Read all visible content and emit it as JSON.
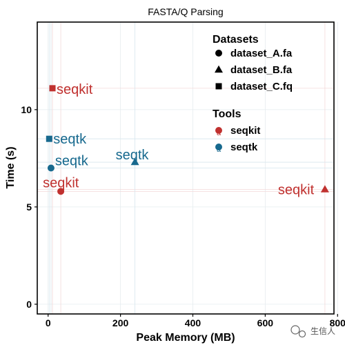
{
  "chart_data": {
    "type": "scatter",
    "title": "FASTA/Q Parsing",
    "xlabel": "Peak Memory (MB)",
    "ylabel": "Time (s)",
    "xlim": [
      -30,
      790
    ],
    "ylim": [
      -0.5,
      14.5
    ],
    "x_ticks": [
      0,
      200,
      400,
      600,
      800
    ],
    "y_ticks": [
      0,
      5,
      10
    ],
    "grid": true,
    "legend_placement": "top-right",
    "legend": {
      "datasets_title": "Datasets",
      "datasets": [
        {
          "name": "dataset_A.fa",
          "shape": "circle"
        },
        {
          "name": "dataset_B.fa",
          "shape": "triangle"
        },
        {
          "name": "dataset_C.fq",
          "shape": "square"
        }
      ],
      "tools_title": "Tools",
      "tools": [
        {
          "name": "seqkit",
          "color": "#c0312f"
        },
        {
          "name": "seqtk",
          "color": "#17698e"
        }
      ],
      "tool_key_glyph": "a"
    },
    "series": [
      {
        "name": "seqkit",
        "color": "#c0312f",
        "points": [
          {
            "dataset": "dataset_A.fa",
            "x": 35,
            "y": 5.8,
            "label": "seqkit"
          },
          {
            "dataset": "dataset_B.fa",
            "x": 765,
            "y": 5.9,
            "label": "seqkit"
          },
          {
            "dataset": "dataset_C.fq",
            "x": 12,
            "y": 11.1,
            "label": "seqkit"
          }
        ]
      },
      {
        "name": "seqtk",
        "color": "#17698e",
        "points": [
          {
            "dataset": "dataset_A.fa",
            "x": 8,
            "y": 7.0,
            "label": "seqtk"
          },
          {
            "dataset": "dataset_B.fa",
            "x": 240,
            "y": 7.3,
            "label": "seqtk"
          },
          {
            "dataset": "dataset_C.fq",
            "x": 3,
            "y": 8.5,
            "label": "seqtk"
          }
        ]
      }
    ]
  },
  "watermark": {
    "text": "生信人",
    "icon": "wechat-icon"
  }
}
